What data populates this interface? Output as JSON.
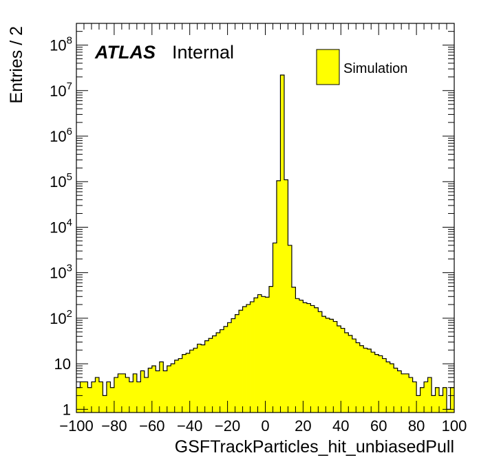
{
  "chart_data": {
    "type": "bar",
    "xlabel": "GSFTrackParticles_hit_unbiasedPull",
    "ylabel": "Entries / 2",
    "xlim": [
      -100,
      100
    ],
    "ylim": [
      0.85,
      300000000
    ],
    "log_y": true,
    "bin_width": 2,
    "x_ticks": [
      -100,
      -80,
      -60,
      -40,
      -20,
      0,
      20,
      40,
      60,
      80,
      100
    ],
    "x_tick_labels": [
      "−100",
      "−80",
      "−60",
      "−40",
      "−20",
      "0",
      "20",
      "40",
      "60",
      "80",
      "100"
    ],
    "y_ticks": [
      {
        "value": 1,
        "base": "1",
        "exp": ""
      },
      {
        "value": 10,
        "base": "10",
        "exp": ""
      },
      {
        "value": 100,
        "base": "10",
        "exp": "2"
      },
      {
        "value": 1000,
        "base": "10",
        "exp": "3"
      },
      {
        "value": 10000,
        "base": "10",
        "exp": "4"
      },
      {
        "value": 100000,
        "base": "10",
        "exp": "5"
      },
      {
        "value": 1000000,
        "base": "10",
        "exp": "6"
      },
      {
        "value": 10000000,
        "base": "10",
        "exp": "7"
      },
      {
        "value": 100000000,
        "base": "10",
        "exp": "8"
      }
    ],
    "series": [
      {
        "name": "Simulation",
        "color": "#ffff00",
        "bin_edges_start": -100,
        "values": [
          3,
          4,
          4,
          3,
          4,
          5,
          4,
          2,
          4,
          3,
          5,
          6,
          6,
          5,
          4,
          6,
          4,
          7,
          5,
          8,
          9,
          7,
          11,
          7,
          9,
          10,
          12,
          13,
          16,
          17,
          20,
          22,
          27,
          26,
          32,
          36,
          41,
          48,
          56,
          66,
          80,
          98,
          120,
          150,
          180,
          200,
          230,
          280,
          330,
          300,
          290,
          500,
          4500,
          105000,
          22000000,
          110000,
          4000,
          480,
          270,
          250,
          220,
          210,
          190,
          170,
          140,
          110,
          100,
          95,
          85,
          68,
          60,
          48,
          42,
          35,
          29,
          25,
          22,
          21,
          18,
          16,
          15,
          13,
          11,
          10,
          8,
          7,
          6,
          6,
          5,
          4,
          2,
          3,
          4,
          5,
          2,
          3,
          2,
          3,
          1,
          3
        ]
      }
    ],
    "legend": {
      "position": "top-right",
      "entries": [
        "Simulation"
      ]
    },
    "annotations": {
      "atlas": "ATLAS",
      "status": "Internal"
    }
  }
}
